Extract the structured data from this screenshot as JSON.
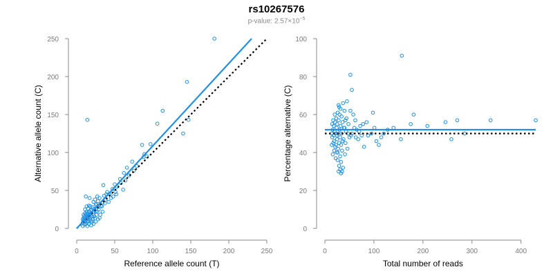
{
  "header": {
    "title": "rs10267576",
    "pvalue_prefix": "p-value: 2.57×10",
    "pvalue_exponent": "−5"
  },
  "colors": {
    "points": "#1f8fe5",
    "fit_line": "#1f8fe5",
    "reference_line": "#000000",
    "axis": "#888888",
    "tick_text": "#7a7a7a"
  },
  "chart_data": [
    {
      "type": "scatter",
      "xlabel": "Reference allele count (T)",
      "ylabel": "Alternative allele count (C)",
      "xlim": [
        0,
        250
      ],
      "ylim": [
        0,
        250
      ],
      "xticks": [
        0,
        50,
        100,
        150,
        200,
        250
      ],
      "yticks": [
        0,
        50,
        100,
        150,
        200,
        250
      ],
      "fit_line": {
        "style": "solid",
        "from": [
          0,
          0
        ],
        "to": [
          230,
          250
        ]
      },
      "reference_line": {
        "style": "dotted",
        "from": [
          0,
          0
        ],
        "to": [
          250,
          250
        ]
      },
      "points": [
        [
          181,
          250
        ],
        [
          145,
          193
        ],
        [
          113,
          155
        ],
        [
          106,
          138
        ],
        [
          14,
          143
        ],
        [
          140,
          125
        ],
        [
          147,
          143
        ],
        [
          86,
          110
        ],
        [
          97,
          111
        ],
        [
          89,
          98
        ],
        [
          88,
          94
        ],
        [
          79,
          82
        ],
        [
          73,
          88
        ],
        [
          66,
          80
        ],
        [
          62,
          73
        ],
        [
          57,
          65
        ],
        [
          53,
          55
        ],
        [
          61,
          51
        ],
        [
          51,
          48
        ],
        [
          52,
          45
        ],
        [
          47,
          52
        ],
        [
          40,
          48
        ],
        [
          45,
          40
        ],
        [
          39,
          45
        ],
        [
          35,
          57
        ],
        [
          38,
          38
        ],
        [
          42,
          35
        ],
        [
          36,
          43
        ],
        [
          34,
          34
        ],
        [
          30,
          40
        ],
        [
          32,
          30
        ],
        [
          28,
          36
        ],
        [
          27,
          42
        ],
        [
          28,
          28
        ],
        [
          26,
          31
        ],
        [
          25,
          32
        ],
        [
          24,
          38
        ],
        [
          25,
          22
        ],
        [
          23,
          26
        ],
        [
          22,
          22
        ],
        [
          22,
          18
        ],
        [
          21,
          28
        ],
        [
          20,
          24
        ],
        [
          20,
          16
        ],
        [
          19,
          20
        ],
        [
          18,
          14
        ],
        [
          18,
          24
        ],
        [
          17,
          18
        ],
        [
          17,
          12
        ],
        [
          16,
          22
        ],
        [
          16,
          15
        ],
        [
          15,
          10
        ],
        [
          15,
          18
        ],
        [
          14,
          20
        ],
        [
          14,
          13
        ],
        [
          14,
          8
        ],
        [
          13,
          15
        ],
        [
          13,
          22
        ],
        [
          12,
          11
        ],
        [
          12,
          18
        ],
        [
          12,
          6
        ],
        [
          11,
          14
        ],
        [
          11,
          9
        ],
        [
          11,
          20
        ],
        [
          10,
          12
        ],
        [
          10,
          16
        ],
        [
          10,
          5
        ],
        [
          9,
          10
        ],
        [
          9,
          14
        ],
        [
          9,
          18
        ],
        [
          8,
          8
        ],
        [
          8,
          12
        ],
        [
          8,
          3
        ],
        [
          12,
          42
        ],
        [
          17,
          40
        ],
        [
          22,
          35
        ],
        [
          27,
          22
        ],
        [
          31,
          18
        ],
        [
          15,
          26
        ],
        [
          19,
          10
        ],
        [
          24,
          13
        ],
        [
          13,
          29
        ],
        [
          21,
          12
        ],
        [
          16,
          6
        ],
        [
          18,
          29
        ],
        [
          20,
          8
        ],
        [
          23,
          16
        ],
        [
          26,
          18
        ],
        [
          29,
          25
        ],
        [
          33,
          29
        ],
        [
          37,
          33
        ],
        [
          43,
          45
        ],
        [
          48,
          42
        ],
        [
          50,
          58
        ],
        [
          58,
          60
        ],
        [
          64,
          63
        ],
        [
          69,
          70
        ],
        [
          75,
          76
        ],
        [
          92,
          95
        ],
        [
          30,
          14
        ],
        [
          34,
          22
        ],
        [
          16,
          30
        ],
        [
          11,
          25
        ],
        [
          14,
          3
        ],
        [
          19,
          4
        ],
        [
          22,
          6
        ],
        [
          25,
          9
        ],
        [
          28,
          12
        ]
      ]
    },
    {
      "type": "scatter",
      "xlabel": "Total number of reads",
      "ylabel": "Percentage alternative (C)",
      "xlim": [
        0,
        430
      ],
      "ylim": [
        0,
        100
      ],
      "xticks": [
        0,
        100,
        200,
        300,
        400
      ],
      "yticks": [
        0,
        20,
        40,
        60,
        80,
        100
      ],
      "fit_line": {
        "style": "solid",
        "from": [
          0,
          52
        ],
        "to": [
          430,
          52
        ]
      },
      "reference_line": {
        "style": "dotted",
        "from": [
          0,
          50
        ],
        "to": [
          430,
          50
        ]
      },
      "points": [
        [
          157,
          91
        ],
        [
          52,
          81
        ],
        [
          55,
          73
        ],
        [
          98,
          61
        ],
        [
          181,
          60
        ],
        [
          175,
          55
        ],
        [
          209,
          54
        ],
        [
          246,
          56
        ],
        [
          270,
          57
        ],
        [
          338,
          57
        ],
        [
          430,
          57
        ],
        [
          285,
          50
        ],
        [
          258,
          47
        ],
        [
          155,
          47
        ],
        [
          128,
          52
        ],
        [
          115,
          48
        ],
        [
          110,
          44
        ],
        [
          101,
          53
        ],
        [
          95,
          50
        ],
        [
          85,
          56
        ],
        [
          80,
          43
        ],
        [
          75,
          49
        ],
        [
          72,
          54
        ],
        [
          68,
          47
        ],
        [
          65,
          52
        ],
        [
          62,
          57
        ],
        [
          58,
          60
        ],
        [
          55,
          50
        ],
        [
          52,
          62
        ],
        [
          50,
          48
        ],
        [
          48,
          55
        ],
        [
          46,
          42
        ],
        [
          45,
          67
        ],
        [
          44,
          58
        ],
        [
          43,
          51
        ],
        [
          42,
          45
        ],
        [
          41,
          39
        ],
        [
          40,
          62
        ],
        [
          39,
          53
        ],
        [
          38,
          47
        ],
        [
          37,
          66
        ],
        [
          36,
          56
        ],
        [
          35,
          30
        ],
        [
          35,
          41
        ],
        [
          34,
          59
        ],
        [
          34,
          50
        ],
        [
          33,
          44
        ],
        [
          33,
          35
        ],
        [
          32,
          63
        ],
        [
          32,
          54
        ],
        [
          31,
          48
        ],
        [
          31,
          38
        ],
        [
          30,
          60
        ],
        [
          30,
          52
        ],
        [
          29,
          45
        ],
        [
          29,
          33
        ],
        [
          28,
          65
        ],
        [
          28,
          57
        ],
        [
          27,
          50
        ],
        [
          27,
          42
        ],
        [
          26,
          36
        ],
        [
          26,
          61
        ],
        [
          25,
          55
        ],
        [
          25,
          47
        ],
        [
          24,
          40
        ],
        [
          24,
          53
        ],
        [
          23,
          58
        ],
        [
          23,
          44
        ],
        [
          22,
          50
        ],
        [
          22,
          37
        ],
        [
          21,
          56
        ],
        [
          21,
          43
        ],
        [
          20,
          51
        ],
        [
          20,
          60
        ],
        [
          19,
          46
        ],
        [
          19,
          41
        ],
        [
          18,
          54
        ],
        [
          18,
          49
        ],
        [
          17,
          57
        ],
        [
          17,
          45
        ],
        [
          16,
          52
        ],
        [
          16,
          39
        ],
        [
          15,
          48
        ],
        [
          15,
          55
        ],
        [
          14,
          44
        ],
        [
          14,
          50
        ],
        [
          28,
          30
        ],
        [
          31,
          31
        ],
        [
          33,
          29
        ],
        [
          37,
          32
        ],
        [
          26,
          40
        ],
        [
          29,
          64
        ],
        [
          24,
          49
        ],
        [
          36,
          46
        ],
        [
          40,
          53
        ],
        [
          42,
          57
        ],
        [
          47,
          50
        ],
        [
          53,
          49
        ],
        [
          60,
          53
        ],
        [
          63,
          48
        ],
        [
          70,
          51
        ],
        [
          78,
          55
        ],
        [
          88,
          49
        ],
        [
          105,
          46
        ],
        [
          120,
          50
        ],
        [
          140,
          53
        ]
      ]
    }
  ]
}
